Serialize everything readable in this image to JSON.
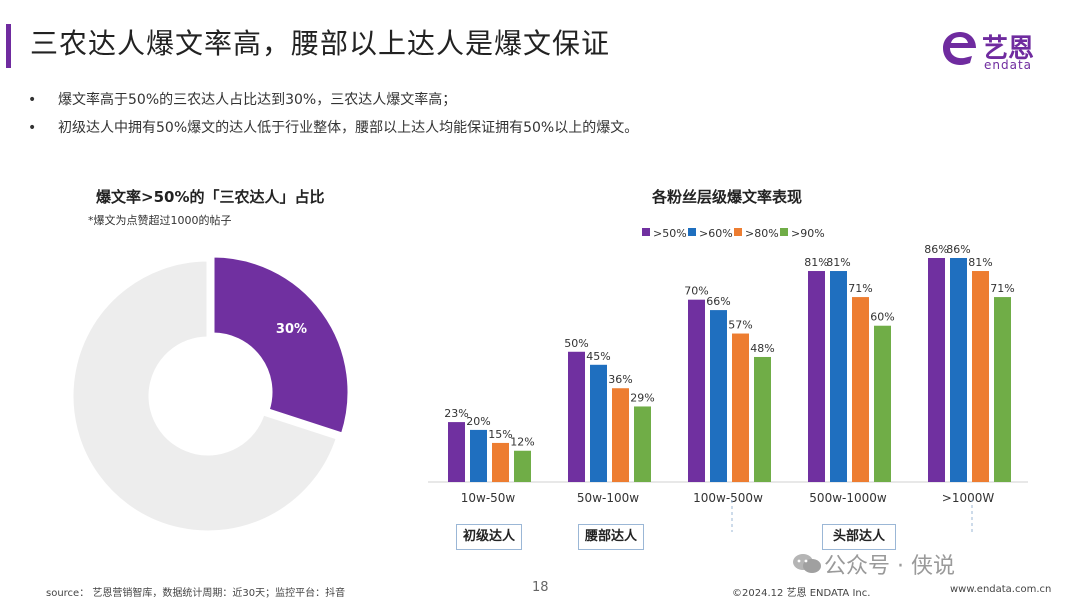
{
  "header": {
    "title": "三农达人爆文率高，腰部以上达人是爆文保证",
    "logo_cn": "艺恩",
    "logo_en": "endata",
    "brand_color": "#6f2b9f"
  },
  "bullets": [
    "爆文率高于50%的三农达人占比达到30%，三农达人爆文率高；",
    "初级达人中拥有50%爆文的达人低于行业整体，腰部以上达人均能保证拥有50%以上的爆文。"
  ],
  "chart_data": [
    {
      "type": "pie",
      "style": "donut",
      "title": "爆文率>50%的「三农达人」占比",
      "note": "*爆文为点赞超过1000的帖子",
      "slices": [
        {
          "name": "",
          "value": 30,
          "label": "30%",
          "color": "#7030a0"
        },
        {
          "name": "",
          "value": 70,
          "label": "",
          "color": "#ededed"
        }
      ]
    },
    {
      "type": "bar",
      "title": "各粉丝层级爆文率表现",
      "categories": [
        "10w-50w",
        "50w-100w",
        "100w-500w",
        "500w-1000w",
        ">1000W"
      ],
      "series": [
        {
          "name": ">50%",
          "color": "#7030a0",
          "values": [
            23,
            50,
            70,
            81,
            86
          ]
        },
        {
          "name": ">60%",
          "color": "#1f6fbf",
          "values": [
            20,
            45,
            66,
            81,
            86
          ]
        },
        {
          "name": ">80%",
          "color": "#ed7d31",
          "values": [
            15,
            36,
            57,
            71,
            81
          ]
        },
        {
          "name": ">90%",
          "color": "#70ad47",
          "values": [
            12,
            29,
            48,
            60,
            71
          ]
        }
      ],
      "unit": "%",
      "ylim": [
        0,
        86
      ],
      "legend": "top",
      "grid": false
    }
  ],
  "tiers": {
    "junior": "初级达人",
    "waist": "腰部达人",
    "head": "头部达人"
  },
  "footer": {
    "source": "source： 艺恩营销智库，数据统计周期：近30天；监控平台：抖音",
    "page": "18",
    "copyright": "©2024.12 艺恩 ENDATA Inc.",
    "url": "www.endata.com.cn",
    "watermark": "公众号 · 侠说"
  }
}
